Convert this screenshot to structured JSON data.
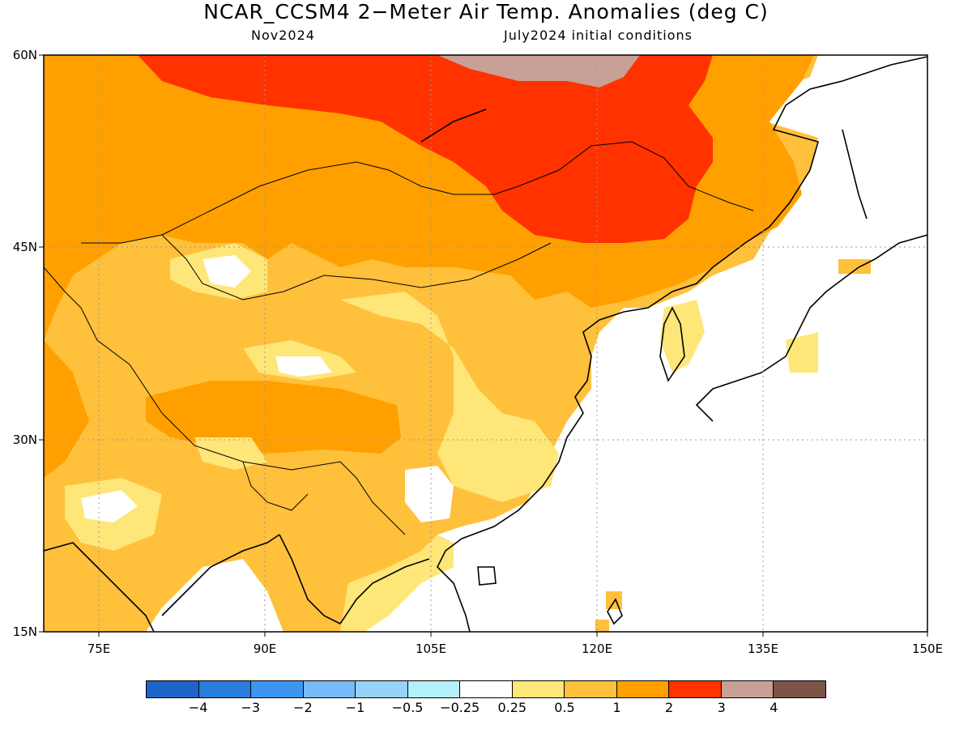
{
  "title": "NCAR_CCSM4 2−Meter Air Temp. Anomalies (deg C)",
  "subtitle_left": "Nov2024",
  "subtitle_right": "July2024 initial conditions",
  "lat_labels": [
    "60N",
    "45N",
    "30N",
    "15N"
  ],
  "lon_labels": [
    "75E",
    "90E",
    "105E",
    "120E",
    "135E",
    "150E"
  ],
  "colorbar": {
    "colors": [
      "#1e64c8",
      "#2a7ddc",
      "#3c96ef",
      "#78b9f8",
      "#96d2fa",
      "#b4f0fa",
      "#ffffff",
      "#ffe678",
      "#ffc03c",
      "#ffa000",
      "#ff3200",
      "#c8a096",
      "#7d5446"
    ],
    "labels": [
      "−4",
      "−3",
      "−2",
      "−1",
      "−0.5",
      "−0.25",
      "0.25",
      "0.5",
      "1",
      "2",
      "3",
      "4"
    ]
  },
  "map": {
    "extent": {
      "lon": [
        70,
        150
      ],
      "lat": [
        15,
        60
      ]
    },
    "fill_colors": {
      "base": "#ffc03c",
      "warm": "#ffa000",
      "hot": "#ff3200",
      "extreme": "#c8a096",
      "light": "#ffe678",
      "neutral": "#ffffff"
    }
  }
}
